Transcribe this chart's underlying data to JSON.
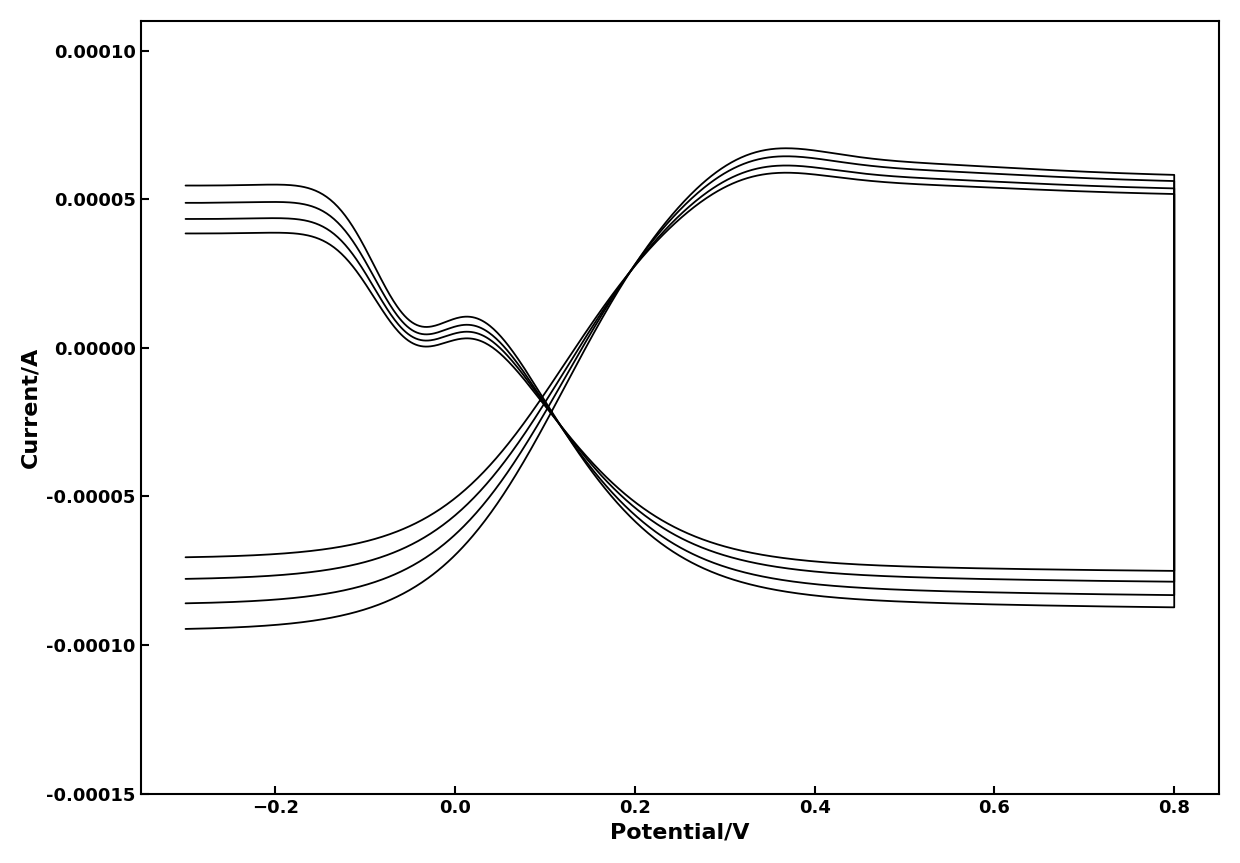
{
  "title": "",
  "xlabel": "Potential/V",
  "ylabel": "Current/A",
  "xlim": [
    -0.35,
    0.85
  ],
  "ylim": [
    -0.00015,
    0.00011
  ],
  "xticks": [
    -0.2,
    0.0,
    0.2,
    0.4,
    0.6,
    0.8
  ],
  "yticks": [
    -0.00015,
    -0.0001,
    -5e-05,
    0.0,
    5e-05,
    0.0001
  ],
  "line_color": "#000000",
  "background_color": "#ffffff"
}
